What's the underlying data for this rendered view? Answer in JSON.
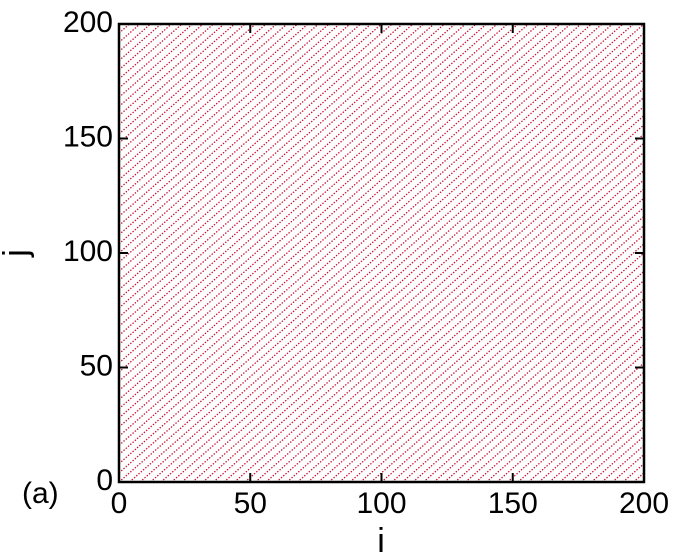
{
  "chart_data": {
    "type": "scatter",
    "title": "",
    "panel_label": "(a)",
    "xlabel": "i",
    "ylabel": "j",
    "xlim": [
      0,
      200
    ],
    "ylim": [
      0,
      200
    ],
    "xticks": [
      0,
      50,
      100,
      150,
      200
    ],
    "yticks": [
      0,
      50,
      100,
      150,
      200
    ],
    "grid": false,
    "pattern": {
      "description_of_points": "lattice sites (i, j) lying on diagonal lines j = i + k",
      "line_offset_spacing": 4,
      "diagonal_slope": 1,
      "color": "#c8102e"
    }
  },
  "colors": {
    "points": "#c8102e",
    "axes": "#000000"
  }
}
